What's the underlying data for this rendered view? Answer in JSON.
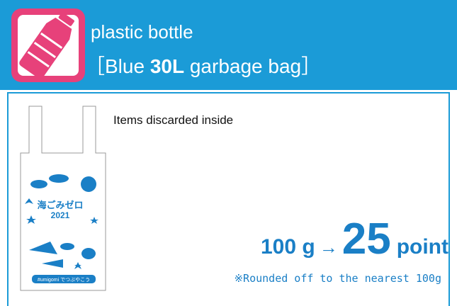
{
  "header": {
    "title": "plastic bottle",
    "subtitle": {
      "open": "［Blue ",
      "bold": "30L",
      "rest": " garbage bag］"
    }
  },
  "body": {
    "caption": "Items discarded inside",
    "conversion": {
      "weight": "100 g",
      "arrow": "→",
      "points": "25",
      "unit": "point"
    },
    "note": "※Rounded off to the nearest 100g"
  },
  "bag": {
    "slogan": "海ごみゼロ",
    "year": "2021",
    "hashtag": "#umigomi でつぶやこう"
  }
}
